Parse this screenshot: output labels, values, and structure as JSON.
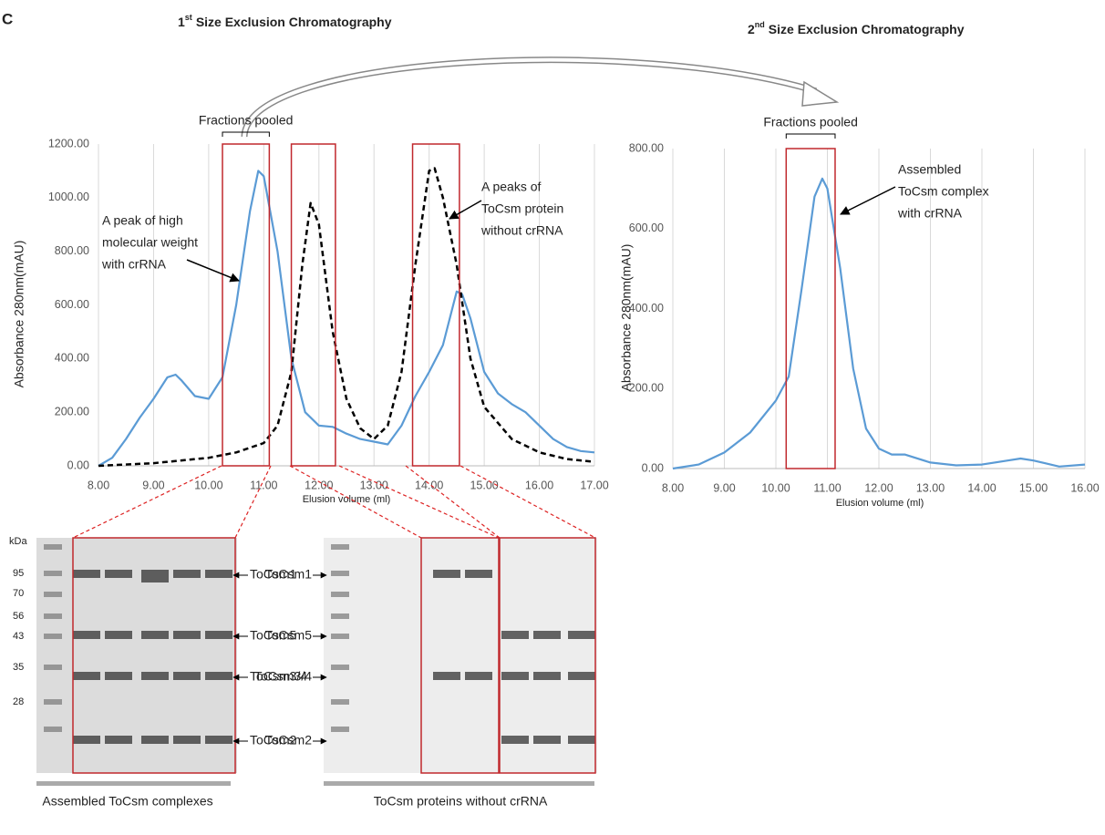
{
  "panel_label": "C",
  "chart_data": [
    {
      "type": "line",
      "title_number": "1",
      "title_sup": "st",
      "title": "Size Exclusion Chromatography",
      "x_label": "Elusion volume (ml)",
      "y_label": "Absorbance 280nm(mAU)",
      "xlim": [
        8,
        17
      ],
      "ylim": [
        0,
        1200
      ],
      "grid": "x",
      "xticks": [
        {
          "value": 8,
          "label": "8.00"
        },
        {
          "value": 9,
          "label": "9.00"
        },
        {
          "value": 10,
          "label": "10.00"
        },
        {
          "value": 11,
          "label": "11.00"
        },
        {
          "value": 12,
          "label": "12.00"
        },
        {
          "value": 13,
          "label": "13.00"
        },
        {
          "value": 14,
          "label": "14.00"
        },
        {
          "value": 15,
          "label": "15.00"
        },
        {
          "value": 16,
          "label": "16.00"
        },
        {
          "value": 17,
          "label": "17.00"
        }
      ],
      "yticks": [
        {
          "value": 0,
          "label": "0.00"
        },
        {
          "value": 200,
          "label": "200.00"
        },
        {
          "value": 400,
          "label": "400.00"
        },
        {
          "value": 600,
          "label": "600.00"
        },
        {
          "value": 800,
          "label": "800.00"
        },
        {
          "value": 1000,
          "label": "1000.00"
        },
        {
          "value": 1200,
          "label": "1200.00"
        }
      ],
      "series": [
        {
          "color": "#5b9bd5",
          "dash": "solid",
          "x": [
            8,
            8.25,
            8.5,
            8.75,
            9,
            9.25,
            9.4,
            9.5,
            9.75,
            10,
            10.25,
            10.5,
            10.75,
            10.9,
            11,
            11.25,
            11.5,
            11.75,
            12,
            12.25,
            12.5,
            12.75,
            13,
            13.25,
            13.5,
            13.75,
            14,
            14.25,
            14.5,
            14.6,
            14.75,
            15,
            15.25,
            15.5,
            15.75,
            16,
            16.25,
            16.5,
            16.75,
            17
          ],
          "values": [
            0,
            30,
            100,
            180,
            250,
            330,
            340,
            320,
            260,
            250,
            330,
            600,
            950,
            1100,
            1080,
            800,
            400,
            200,
            150,
            145,
            120,
            100,
            90,
            80,
            150,
            260,
            350,
            450,
            650,
            640,
            550,
            350,
            270,
            230,
            200,
            150,
            100,
            70,
            55,
            50
          ]
        },
        {
          "color": "#000000",
          "dash": "dashed",
          "x": [
            8,
            9,
            10,
            10.5,
            11,
            11.25,
            11.5,
            11.7,
            11.85,
            12,
            12.25,
            12.5,
            12.75,
            13,
            13.25,
            13.5,
            13.75,
            14,
            14.1,
            14.25,
            14.5,
            14.75,
            15,
            15.5,
            16,
            16.5,
            17
          ],
          "values": [
            0,
            10,
            30,
            50,
            85,
            150,
            350,
            750,
            980,
            900,
            500,
            250,
            140,
            100,
            150,
            350,
            750,
            1100,
            1110,
            1000,
            750,
            400,
            220,
            100,
            50,
            25,
            15
          ]
        }
      ],
      "highlight_ranges": [
        [
          10.25,
          11.1
        ],
        [
          11.5,
          12.3
        ],
        [
          13.7,
          14.55
        ]
      ],
      "pooled_label": "Fractions pooled",
      "annotations": [
        [
          "A peak of high",
          "molecular weight",
          "with crRNA"
        ],
        [
          "A peaks of",
          "ToCsm protein",
          "without crRNA"
        ]
      ]
    },
    {
      "type": "line",
      "title_number": "2",
      "title_sup": "nd",
      "title": "Size Exclusion Chromatography",
      "x_label": "Elusion volume (ml)",
      "y_label": "Absorbance 280nm(mAU)",
      "xlim": [
        8,
        16
      ],
      "ylim": [
        0,
        800
      ],
      "grid": "x",
      "xticks": [
        {
          "value": 8,
          "label": "8.00"
        },
        {
          "value": 9,
          "label": "9.00"
        },
        {
          "value": 10,
          "label": "10.00"
        },
        {
          "value": 11,
          "label": "11.00"
        },
        {
          "value": 12,
          "label": "12.00"
        },
        {
          "value": 13,
          "label": "13.00"
        },
        {
          "value": 14,
          "label": "14.00"
        },
        {
          "value": 15,
          "label": "15.00"
        },
        {
          "value": 16,
          "label": "16.00"
        }
      ],
      "yticks": [
        {
          "value": 0,
          "label": "0.00"
        },
        {
          "value": 200,
          "label": "200.00"
        },
        {
          "value": 400,
          "label": "400.00"
        },
        {
          "value": 600,
          "label": "600.00"
        },
        {
          "value": 800,
          "label": "800.00"
        }
      ],
      "series": [
        {
          "color": "#5b9bd5",
          "dash": "solid",
          "x": [
            8,
            8.5,
            9,
            9.5,
            10,
            10.25,
            10.5,
            10.75,
            10.9,
            11,
            11.25,
            11.5,
            11.75,
            12,
            12.25,
            12.5,
            13,
            13.5,
            14,
            14.5,
            14.75,
            15,
            15.5,
            16
          ],
          "values": [
            0,
            10,
            40,
            90,
            170,
            230,
            450,
            680,
            725,
            700,
            500,
            250,
            100,
            50,
            35,
            35,
            15,
            8,
            10,
            20,
            25,
            20,
            5,
            10
          ]
        }
      ],
      "highlight_ranges": [
        [
          10.2,
          11.15
        ]
      ],
      "pooled_label": "Fractions pooled",
      "annotations": [
        [
          "Assembled",
          "ToCsm complex",
          "with crRNA"
        ]
      ]
    }
  ],
  "gels": [
    {
      "caption": "Assembled ToCsm complexes",
      "marker_unit": "kDa",
      "markers": [
        95,
        70,
        56,
        43,
        35,
        28
      ],
      "bands": [
        "ToCsm1",
        "ToCsm5",
        "ToCsm3/4",
        "ToCsm2"
      ]
    },
    {
      "caption": "ToCsm proteins without crRNA",
      "bands": [
        "ToCsm1",
        "ToCsm5",
        "ToCsm3/4",
        "ToCsm2"
      ]
    }
  ]
}
